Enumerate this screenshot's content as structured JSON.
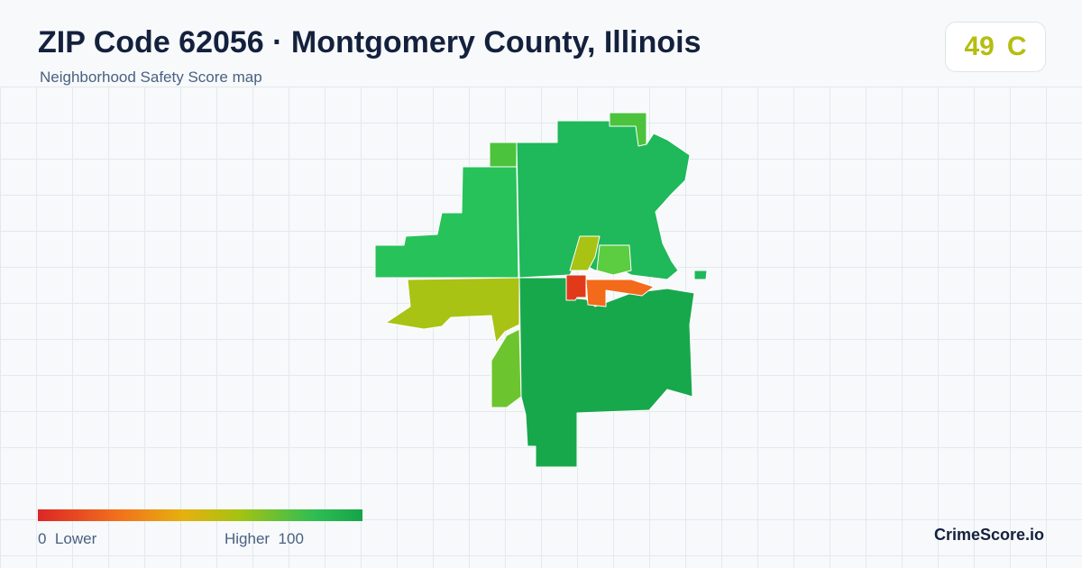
{
  "header": {
    "title": "ZIP Code 62056 · Montgomery County, Illinois",
    "subtitle": "Neighborhood Safety Score map"
  },
  "score": {
    "value": "49",
    "grade": "C"
  },
  "legend": {
    "min": "0",
    "low_label": "Lower",
    "high_label": "Higher",
    "max": "100"
  },
  "brand": "CrimeScore.io"
}
